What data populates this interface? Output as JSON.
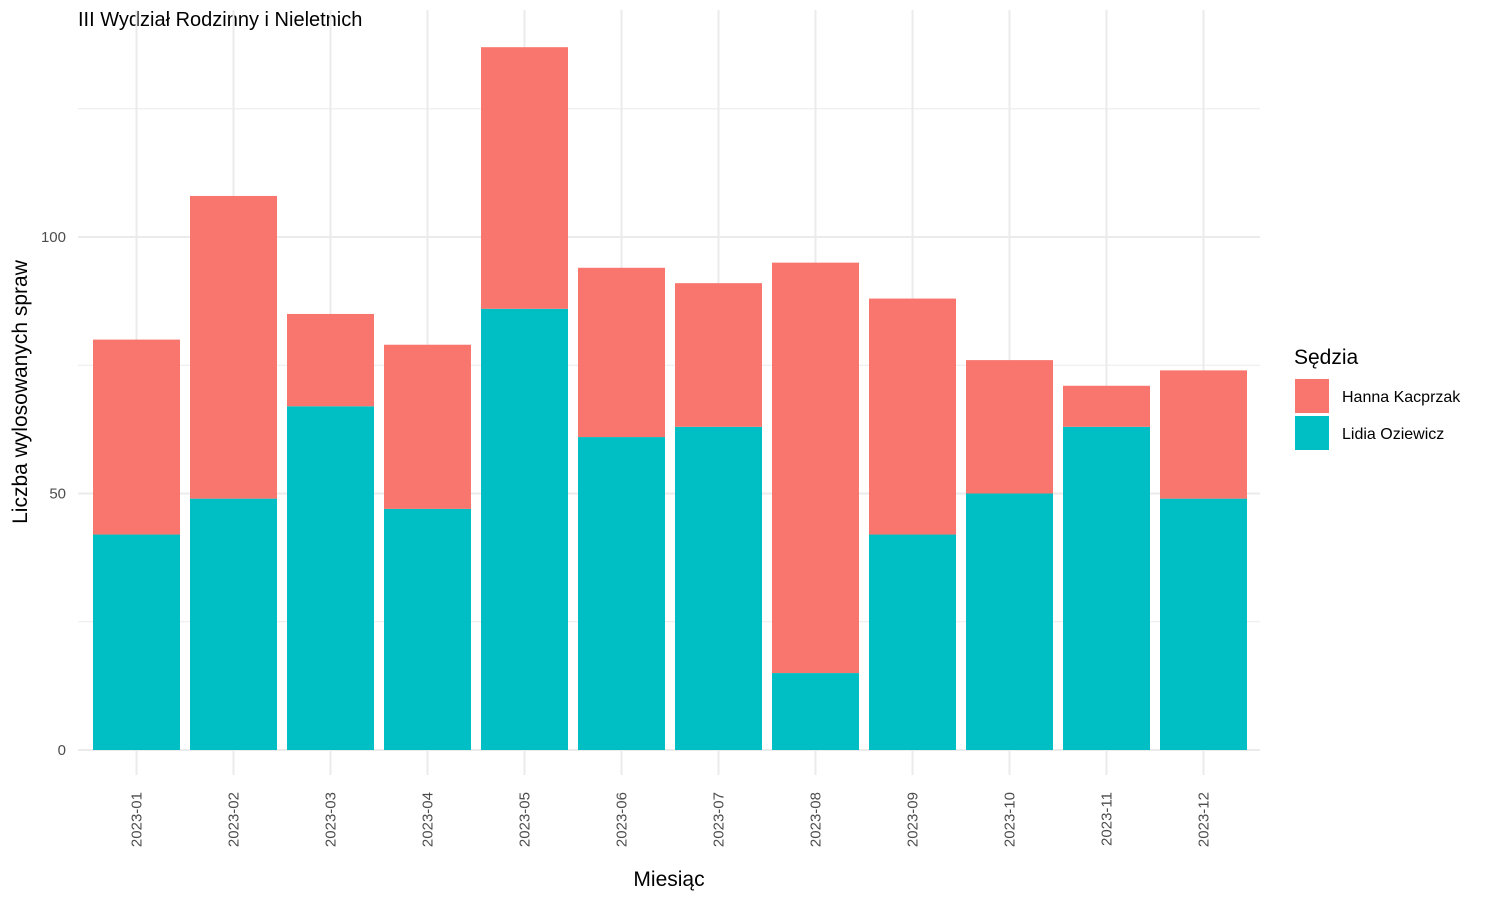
{
  "chart_data": {
    "type": "bar",
    "stacked": true,
    "title": "III Wydział Rodzinny i Nieletnich",
    "xlabel": "Miesiąc",
    "ylabel": "Liczba wylosowanych spraw",
    "categories": [
      "2023-01",
      "2023-02",
      "2023-03",
      "2023-04",
      "2023-05",
      "2023-06",
      "2023-07",
      "2023-08",
      "2023-09",
      "2023-10",
      "2023-11",
      "2023-12"
    ],
    "series": [
      {
        "name": "Lidia Oziewicz",
        "color": "#00BFC4",
        "values": [
          42,
          49,
          67,
          47,
          86,
          61,
          63,
          15,
          42,
          50,
          63,
          49
        ]
      },
      {
        "name": "Hanna Kacprzak",
        "color": "#F8766D",
        "values": [
          38,
          59,
          18,
          32,
          51,
          33,
          28,
          80,
          46,
          26,
          8,
          25
        ]
      }
    ],
    "yticks": [
      0,
      50,
      100
    ],
    "ylim": [
      -5,
      143
    ],
    "legend": {
      "title": "Sędzia",
      "position": "right",
      "entries": [
        {
          "label": "Hanna Kacprzak",
          "color": "#F8766D"
        },
        {
          "label": "Lidia Oziewicz",
          "color": "#00BFC4"
        }
      ]
    },
    "grid": true
  }
}
